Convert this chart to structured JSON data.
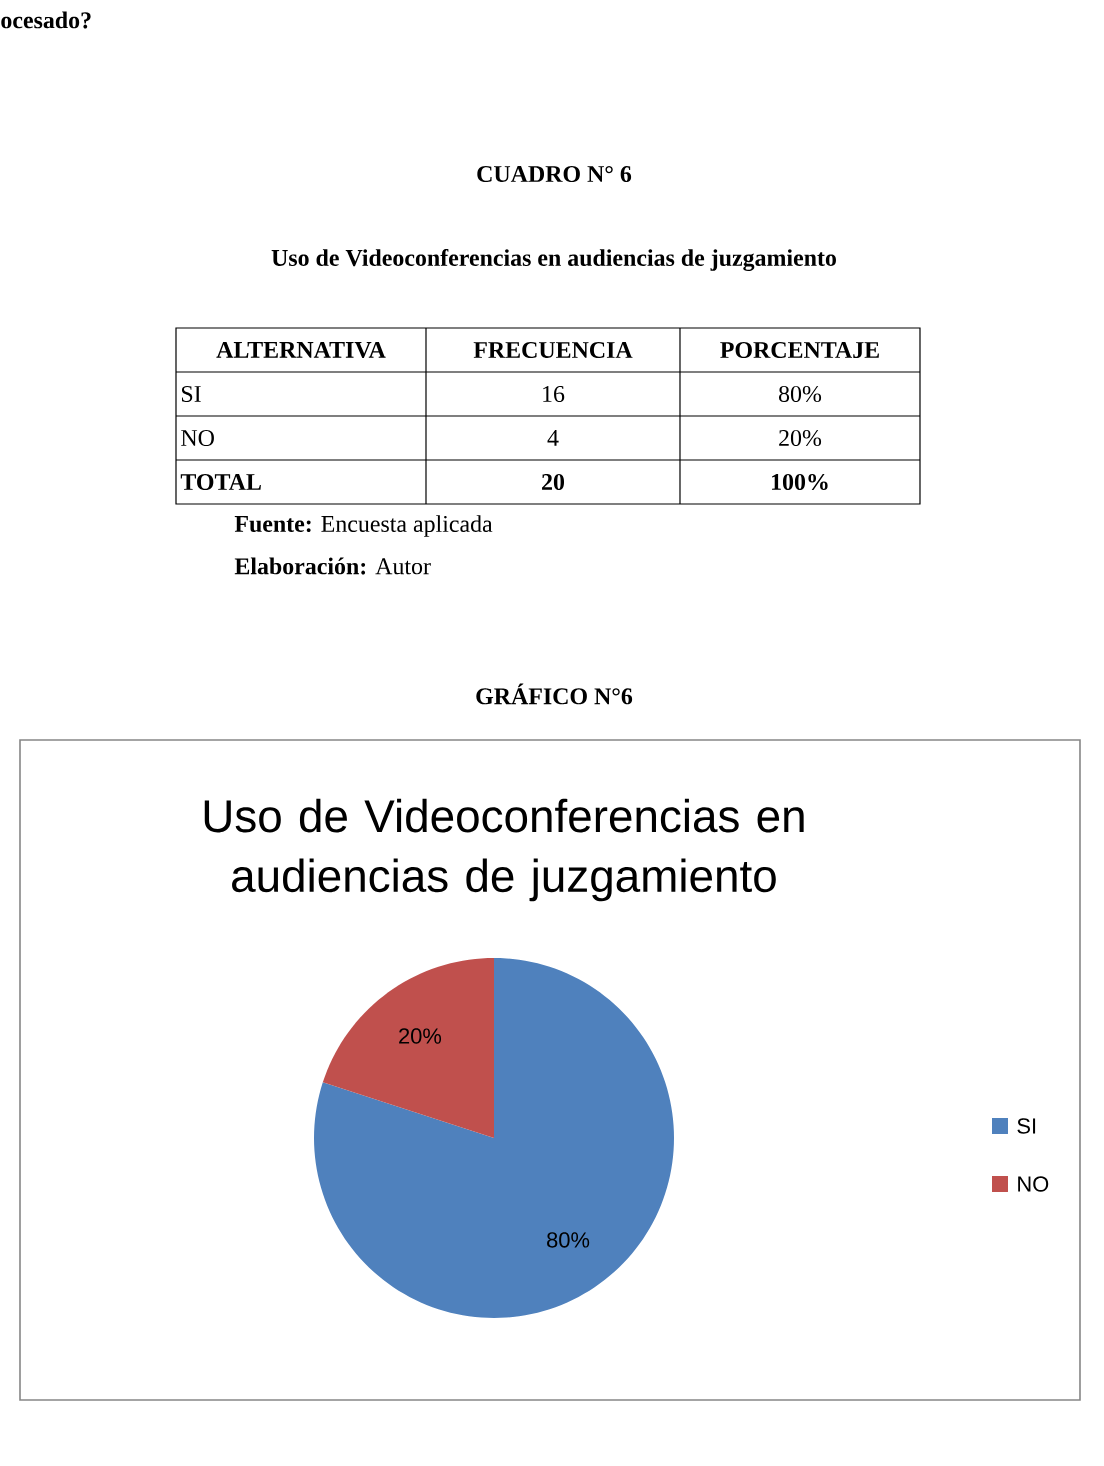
{
  "chart_data": {
    "type": "pie",
    "title": "Uso de Videoconferencias en audiencias de juzgamiento",
    "categories": [
      "SI",
      "NO"
    ],
    "values": [
      80,
      20
    ],
    "value_labels": [
      "80%",
      "20%"
    ],
    "colors": [
      "#4f81bd",
      "#c0504d"
    ],
    "legend": "right",
    "annotations": [
      "ocesado?",
      "CUADRO N° 6",
      "Uso de Videoconferencias en audiencias de juzgamiento",
      "ALTERNATIVA",
      "FRECUENCIA",
      "PORCENTAJE",
      "SI",
      "16",
      "80%",
      "NO",
      "4",
      "20%",
      "TOTAL",
      "20",
      "100%",
      "**Fuente:** Encuesta aplicada",
      "**Elaboración:** Autor",
      "GRÁFICO N°6"
    ]
  }
}
